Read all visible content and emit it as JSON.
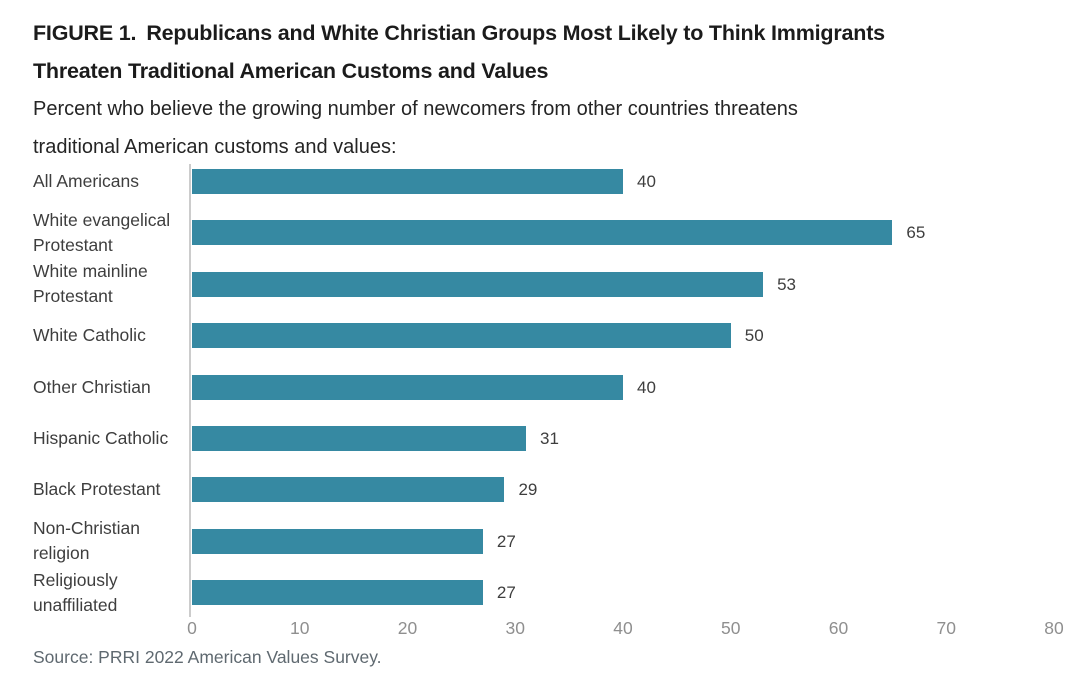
{
  "header": {
    "figure_label": "FIGURE 1.",
    "title_lines": [
      "Republicans and White Christian Groups Most Likely to Think Immigrants",
      "Threaten Traditional American Customs and Values"
    ],
    "subtitle_lines": [
      "Percent who believe the growing number of newcomers from other countries threatens",
      "traditional American customs and values:"
    ]
  },
  "chart_data": {
    "type": "bar",
    "orientation": "horizontal",
    "title": "FIGURE 1. Republicans and White Christian Groups Most Likely to Think Immigrants Threaten Traditional American Customs and Values",
    "subtitle": "Percent who believe the growing number of newcomers from other countries threatens traditional American customs and values:",
    "categories": [
      "All Americans",
      "White evangelical Protestant",
      "White mainline Protestant",
      "White Catholic",
      "Other Christian",
      "Hispanic Catholic",
      "Black Protestant",
      "Non-Christian religion",
      "Religiously unaffiliated"
    ],
    "category_lines": [
      [
        "All Americans"
      ],
      [
        "White evangelical",
        "Protestant"
      ],
      [
        "White mainline",
        "Protestant"
      ],
      [
        "White Catholic"
      ],
      [
        "Other Christian"
      ],
      [
        "Hispanic Catholic"
      ],
      [
        "Black Protestant"
      ],
      [
        "Non-Christian",
        "religion"
      ],
      [
        "Religiously",
        "unaffiliated"
      ]
    ],
    "values": [
      40,
      65,
      53,
      50,
      40,
      31,
      29,
      27,
      27
    ],
    "value_labels": [
      "40",
      "65",
      "53",
      "50",
      "40",
      "31",
      "29",
      "27",
      "27"
    ],
    "xlim": [
      0,
      80
    ],
    "xticks": [
      0,
      10,
      20,
      30,
      40,
      50,
      60,
      70,
      80
    ],
    "grid": false,
    "legend": null,
    "bar_color": "#3689a2",
    "axis_line_color": "#cccccc",
    "source": "Source: PRRI 2022 American Values Survey."
  }
}
